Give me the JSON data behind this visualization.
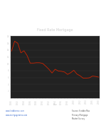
{
  "title": "Fixed Rate Mortgage",
  "xlabel": "Year",
  "bg_color": "#ffffff",
  "chart_bg_color": "#2a2a2a",
  "plot_bg_color": "#222222",
  "line_color": "#cc2200",
  "text_color": "#cccccc",
  "grid_color": "#3a3a3a",
  "years": [
    1980,
    1981,
    1982,
    1983,
    1984,
    1985,
    1986,
    1987,
    1988,
    1989,
    1990,
    1991,
    1992,
    1993,
    1994,
    1995,
    1996,
    1997,
    1998,
    1999,
    2000,
    2001,
    2002,
    2003,
    2004,
    2005,
    2006,
    2007,
    2008
  ],
  "rates": [
    13.7,
    16.6,
    16.0,
    13.2,
    13.8,
    12.4,
    10.2,
    10.2,
    10.3,
    10.3,
    10.1,
    9.3,
    8.4,
    7.3,
    8.4,
    7.9,
    7.8,
    7.6,
    6.9,
    7.4,
    8.1,
    7.0,
    6.5,
    5.8,
    5.8,
    5.9,
    6.4,
    6.3,
    6.1
  ],
  "ylim": [
    0,
    18
  ],
  "ytick_vals": [
    2,
    4,
    6,
    8,
    10,
    12,
    14,
    16,
    18
  ],
  "footnote_left": "www.freddiemac.com\nwww.mortgagerates.com",
  "footnote_right": "Source: Freddie Mac\nPrimary Mortgage\nMarket Survey",
  "pdf_badge_color": "#1a1a1a",
  "pdf_text_color": "#ffffff",
  "title_fontsize": 3.5,
  "tick_fontsize": 2.0,
  "footnote_fontsize": 1.8,
  "pdf_fontsize": 9
}
